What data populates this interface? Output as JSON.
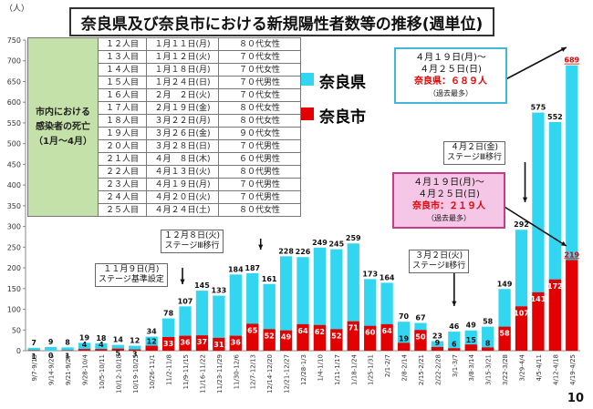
{
  "unit": "（人）",
  "title": "奈良県及び奈良市における新規陽性者数等の推移(週単位)",
  "page_number": "10",
  "colors": {
    "nara_pref": "#33d6f0",
    "nara_city": "#e20000",
    "table_header": "#c3e1a8"
  },
  "legend": [
    {
      "name": "奈良県",
      "color": "#33d6f0"
    },
    {
      "name": "奈良市",
      "color": "#e20000"
    }
  ],
  "deaths_table": {
    "header": "市内における感染者の死亡（1月～4月）",
    "rows": [
      [
        "１２人目",
        "１月１１日(月)",
        "８０代女性"
      ],
      [
        "１３人目",
        "１月１２日(火)",
        "７０代女性"
      ],
      [
        "１４人目",
        "１月１８日(月)",
        "７０代女性"
      ],
      [
        "１５人目",
        "１月２４日(日)",
        "７０代男性"
      ],
      [
        "１６人目",
        "２月　２日(火)",
        "７０代女性"
      ],
      [
        "１７人目",
        "２月１９日(金)",
        "８０代女性"
      ],
      [
        "１８人目",
        "３月２２日(月)",
        "８０代女性"
      ],
      [
        "１９人目",
        "３月２６日(金)",
        "９０代女性"
      ],
      [
        "２０人目",
        "３月２８日(日)",
        "７０代男性"
      ],
      [
        "２１人目",
        "４月　８日(木)",
        "６０代男性"
      ],
      [
        "２２人目",
        "４月１３日(火)",
        "８０代男性"
      ],
      [
        "２３人目",
        "４月１９日(月)",
        "７０代男性"
      ],
      [
        "２４人目",
        "４月２０日(火)",
        "７０代男性"
      ],
      [
        "２５人目",
        "４月２４日(土)",
        "８０代女性"
      ]
    ]
  },
  "callouts": {
    "stage_nov": [
      "１１月９日(月)",
      "ステージ基準設定"
    ],
    "stage_dec": [
      "１２月８日(火)",
      "ステージⅢ移行"
    ],
    "stage_mar": [
      "３月２日(火)",
      "ステージⅡ移行"
    ],
    "stage_apr": [
      "４月２日(金)",
      "ステージⅢ移行"
    ],
    "pref_week": [
      "４月１９日(月)～",
      "４月２５日(日)",
      "奈良県：６８９人",
      "（過去最多）"
    ],
    "city_week": [
      "４月１９日(月)～",
      "４月２５日(日)",
      "奈良市：２１９人",
      "（過去最多）"
    ]
  },
  "chart_data": {
    "type": "bar",
    "title": "奈良県及び奈良市における新規陽性者数等の推移(週単位)",
    "ylabel": "（人）",
    "ylim": [
      0,
      750
    ],
    "yticks": [
      0,
      50,
      100,
      150,
      200,
      250,
      300,
      350,
      400,
      450,
      500,
      550,
      600,
      650,
      700,
      750
    ],
    "grid": false,
    "legend_position": "right",
    "categories": [
      "9/7-9/13",
      "9/14-9/20",
      "9/21-9/27",
      "9/28-10/4",
      "10/5-10/11",
      "10/12-10/18",
      "10/19-10/25",
      "10/26-11/1",
      "11/2-11/8",
      "11/9-11/15",
      "11/16-11/22",
      "11/23-11/29",
      "11/30-12/6",
      "12/7-12/13",
      "12/14-12/20",
      "12/21-12/27",
      "12/28-1/3",
      "1/4-1/10",
      "1/11-1/17",
      "1/18-1/24",
      "1/25-1/31",
      "2/1-2/7",
      "2/8-2/14",
      "2/15-2/21",
      "2/22-2/28",
      "3/1-3/7",
      "3/8-3/14",
      "3/15-3/21",
      "3/22-3/28",
      "3/29-4/4",
      "4/5-4/11",
      "4/12-4/18",
      "4/19-4/25"
    ],
    "series": [
      {
        "name": "奈良県",
        "values": [
          7,
          9,
          8,
          19,
          18,
          14,
          12,
          34,
          78,
          107,
          145,
          133,
          184,
          187,
          161,
          228,
          226,
          249,
          245,
          259,
          173,
          164,
          70,
          67,
          23,
          46,
          49,
          58,
          149,
          292,
          575,
          552,
          689
        ]
      },
      {
        "name": "奈良市",
        "values": [
          1,
          0,
          1,
          4,
          4,
          5,
          3,
          12,
          33,
          36,
          37,
          31,
          36,
          65,
          52,
          49,
          64,
          62,
          52,
          71,
          60,
          64,
          19,
          50,
          9,
          6,
          15,
          8,
          58,
          107,
          141,
          172,
          219
        ]
      }
    ]
  }
}
